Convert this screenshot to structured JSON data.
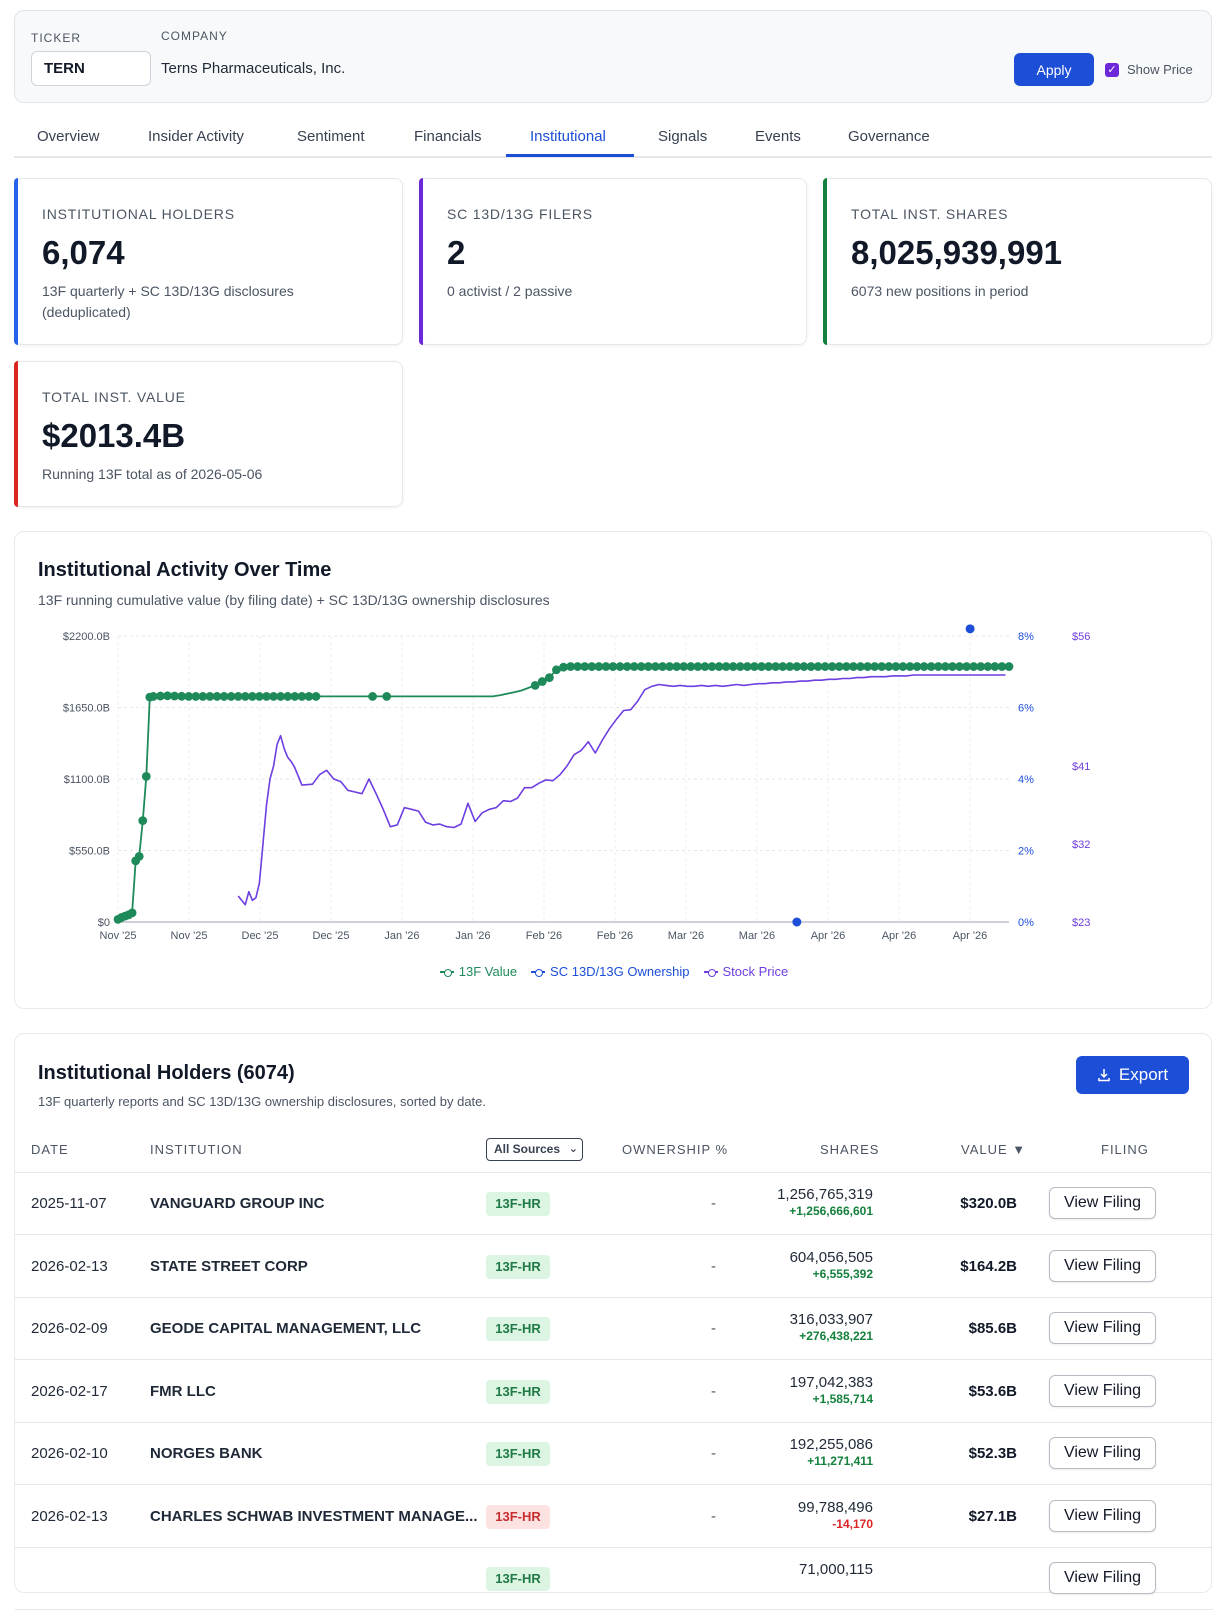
{
  "filters": {
    "ticker_label": "TICKER",
    "ticker_value": "TERN",
    "company_label": "COMPANY",
    "company_name": "Terns Pharmaceuticals, Inc.",
    "apply_label": "Apply",
    "show_price_label": "Show Price",
    "show_price_checked": true
  },
  "tabs": [
    {
      "label": "Overview"
    },
    {
      "label": "Insider Activity"
    },
    {
      "label": "Sentiment"
    },
    {
      "label": "Financials"
    },
    {
      "label": "Institutional",
      "active": true
    },
    {
      "label": "Signals"
    },
    {
      "label": "Events"
    },
    {
      "label": "Governance"
    }
  ],
  "kpis": [
    {
      "label": "INSTITUTIONAL HOLDERS",
      "value": "6,074",
      "sub": "13F quarterly + SC 13D/13G disclosures (deduplicated)",
      "accent": "#2563eb"
    },
    {
      "label": "SC 13D/13G FILERS",
      "value": "2",
      "sub": "0 activist / 2 passive",
      "accent": "#6d28d9"
    },
    {
      "label": "TOTAL INST. SHARES",
      "value": "8,025,939,991",
      "sub": "6073 new positions in period",
      "accent": "#15803d"
    },
    {
      "label": "TOTAL INST. VALUE",
      "value": "$2013.4B",
      "sub": "Running 13F total as of 2026-05-06",
      "accent": "#dc2626"
    }
  ],
  "chart": {
    "title": "Institutional Activity Over Time",
    "subtitle": "13F running cumulative value (by filing date) + SC 13D/13G ownership disclosures",
    "legend": [
      "13F Value",
      "SC 13D/13G Ownership",
      "Stock Price"
    ],
    "colors": {
      "value": "#1e8a5a",
      "ownership": "#1d4ed8",
      "price": "#6d3ee0"
    }
  },
  "chart_data": {
    "type": "line",
    "x_tick_labels": [
      "Nov '25",
      "Nov '25",
      "Dec '25",
      "Dec '25",
      "Jan '26",
      "Jan '26",
      "Feb '26",
      "Feb '26",
      "Mar '26",
      "Mar '26",
      "Apr '26",
      "Apr '26",
      "Apr '26"
    ],
    "y_left": {
      "ticks": [
        "$0",
        "$550.0B",
        "$1100.0B",
        "$1650.0B",
        "$2200.0B"
      ],
      "range": [
        0,
        2200
      ],
      "unit": "$B"
    },
    "y_right_ownership": {
      "ticks": [
        "0%",
        "2%",
        "4%",
        "6%",
        "8%"
      ],
      "range": [
        0,
        8
      ],
      "unit": "%"
    },
    "y_right_price": {
      "ticks": [
        "$23",
        "$32",
        "$41",
        "$56"
      ],
      "range": [
        23,
        56
      ],
      "unit": "$"
    },
    "grid": true,
    "series": [
      {
        "name": "13F Value",
        "axis": "left",
        "x_day": [
          0,
          1,
          2,
          3,
          4,
          5,
          6,
          7,
          8,
          9,
          10,
          12,
          14,
          16,
          18,
          20,
          22,
          24,
          26,
          28,
          30,
          32,
          34,
          36,
          38,
          40,
          42,
          44,
          46,
          48,
          50,
          52,
          54,
          56,
          58,
          60,
          62,
          64,
          66,
          68,
          70,
          72,
          74,
          76,
          78,
          80,
          82,
          84,
          86,
          90,
          96,
          100,
          104,
          106,
          108,
          110,
          112,
          114,
          116,
          118,
          120,
          122,
          124,
          126,
          128,
          130,
          132,
          134,
          136,
          138,
          140,
          142,
          144,
          146,
          148,
          150,
          152,
          154,
          156,
          158,
          160,
          162,
          164,
          166,
          168,
          170,
          172,
          174,
          176,
          178,
          180,
          182,
          184,
          186,
          188,
          190,
          192,
          194,
          196,
          198,
          200,
          202,
          204,
          206,
          208,
          210,
          212,
          214,
          216,
          218,
          220,
          222,
          224,
          226,
          228,
          230,
          232,
          234,
          236,
          238,
          240,
          242,
          244,
          246,
          248,
          250,
          252
        ],
        "values": [
          20,
          35,
          45,
          55,
          70,
          470,
          505,
          780,
          1120,
          1730,
          1735,
          1738,
          1740,
          1738,
          1736,
          1735,
          1735,
          1735,
          1735,
          1735,
          1735,
          1735,
          1735,
          1735,
          1735,
          1735,
          1735,
          1735,
          1735,
          1735,
          1735,
          1735,
          1735,
          1735,
          1735,
          1735,
          1735,
          1735,
          1735,
          1735,
          1735,
          1735,
          1735,
          1735,
          1735,
          1735,
          1735,
          1735,
          1735,
          1735,
          1735,
          1735,
          1735,
          1735,
          1745,
          1755,
          1768,
          1780,
          1800,
          1820,
          1850,
          1880,
          1940,
          1960,
          1965,
          1965,
          1965,
          1965,
          1965,
          1965,
          1965,
          1965,
          1965,
          1965,
          1965,
          1965,
          1965,
          1965,
          1965,
          1965,
          1965,
          1965,
          1965,
          1965,
          1965,
          1965,
          1965,
          1965,
          1965,
          1965,
          1965,
          1965,
          1965,
          1965,
          1965,
          1965,
          1965,
          1965,
          1965,
          1965,
          1965,
          1965,
          1965,
          1965,
          1965,
          1965,
          1965,
          1965,
          1965,
          1965,
          1965,
          1965,
          1965,
          1965,
          1965,
          1965,
          1965,
          1965,
          1965,
          1965,
          1965,
          1965,
          1965,
          1965,
          1965,
          1965,
          1965
        ]
      },
      {
        "name": "SC 13D/13G Ownership",
        "axis": "right_ownership",
        "x_day": [
          192,
          241
        ],
        "values": [
          0.0,
          8.2
        ]
      },
      {
        "name": "Stock Price",
        "axis": "right_price",
        "x_day": [
          34,
          36,
          37,
          38,
          39,
          40,
          42,
          43,
          44,
          45,
          46,
          47,
          48,
          49,
          50,
          52,
          55,
          57,
          59,
          61,
          63,
          65,
          67,
          69,
          71,
          73,
          75,
          77,
          79,
          81,
          83,
          85,
          87,
          89,
          91,
          93,
          95,
          97,
          99,
          101,
          103,
          105,
          107,
          109,
          111,
          113,
          115,
          117,
          119,
          121,
          123,
          125,
          127,
          129,
          131,
          133,
          135,
          137,
          139,
          141,
          143,
          145,
          147,
          149,
          151,
          153,
          155,
          157,
          159,
          161,
          163,
          165,
          167,
          169,
          171,
          173,
          175,
          177,
          179,
          181,
          183,
          185,
          187,
          189,
          191,
          193,
          195,
          197,
          199,
          201,
          203,
          205,
          207,
          209,
          211,
          213,
          215,
          217,
          219,
          221,
          223,
          225,
          227,
          229,
          231,
          233,
          235,
          237,
          239,
          241,
          243,
          245,
          247,
          249,
          251
        ],
        "values": [
          26.0,
          25.0,
          26.5,
          25.5,
          25.8,
          27.5,
          36.5,
          39.5,
          41.0,
          43.5,
          44.5,
          43.0,
          42.0,
          41.5,
          40.8,
          38.8,
          38.9,
          40.0,
          40.5,
          39.5,
          39.2,
          38.2,
          38.0,
          37.8,
          39.5,
          37.8,
          36.0,
          34.0,
          34.2,
          36.2,
          36.0,
          35.8,
          34.5,
          34.2,
          34.3,
          34.0,
          33.9,
          34.3,
          36.7,
          34.6,
          35.6,
          36.0,
          36.2,
          37.0,
          36.9,
          37.3,
          38.5,
          38.5,
          39.0,
          39.4,
          39.3,
          40.0,
          41.0,
          42.3,
          42.8,
          43.8,
          42.5,
          44.0,
          45.3,
          46.4,
          47.4,
          47.5,
          48.5,
          49.8,
          50.2,
          50.4,
          50.3,
          50.2,
          50.3,
          50.2,
          50.2,
          50.3,
          50.2,
          50.3,
          50.2,
          50.3,
          50.4,
          50.3,
          50.4,
          50.5,
          50.5,
          50.6,
          50.6,
          50.7,
          50.7,
          50.8,
          50.8,
          50.9,
          50.9,
          51.0,
          51.0,
          51.1,
          51.1,
          51.2,
          51.2,
          51.3,
          51.3,
          51.3,
          51.4,
          51.4,
          51.4,
          51.5,
          51.5,
          51.5,
          51.5,
          51.5,
          51.5,
          51.5,
          51.5,
          51.5,
          51.5,
          51.5,
          51.5,
          51.5,
          51.5
        ]
      }
    ]
  },
  "holders": {
    "title": "Institutional Holders (6074)",
    "subtitle": "13F quarterly reports and SC 13D/13G ownership disclosures, sorted by date.",
    "export_label": "Export",
    "columns": {
      "date": "DATE",
      "institution": "INSTITUTION",
      "source_filter": "All Sources",
      "ownership": "OWNERSHIP %",
      "shares": "SHARES",
      "value": "VALUE ▼",
      "filing": "FILING"
    },
    "rows": [
      {
        "date": "2025-11-07",
        "institution": "VANGUARD GROUP INC",
        "source": "13F-HR",
        "badge": "green",
        "ownership": "-",
        "shares": "1,256,765,319",
        "delta": "+1,256,666,601",
        "delta_dir": "up",
        "value": "$320.0B",
        "action": "View Filing"
      },
      {
        "date": "2026-02-13",
        "institution": "STATE STREET CORP",
        "source": "13F-HR",
        "badge": "green",
        "ownership": "-",
        "shares": "604,056,505",
        "delta": "+6,555,392",
        "delta_dir": "up",
        "value": "$164.2B",
        "action": "View Filing"
      },
      {
        "date": "2026-02-09",
        "institution": "GEODE CAPITAL MANAGEMENT, LLC",
        "source": "13F-HR",
        "badge": "green",
        "ownership": "-",
        "shares": "316,033,907",
        "delta": "+276,438,221",
        "delta_dir": "up",
        "value": "$85.6B",
        "action": "View Filing"
      },
      {
        "date": "2026-02-17",
        "institution": "FMR LLC",
        "source": "13F-HR",
        "badge": "green",
        "ownership": "-",
        "shares": "197,042,383",
        "delta": "+1,585,714",
        "delta_dir": "up",
        "value": "$53.6B",
        "action": "View Filing"
      },
      {
        "date": "2026-02-10",
        "institution": "NORGES BANK",
        "source": "13F-HR",
        "badge": "green",
        "ownership": "-",
        "shares": "192,255,086",
        "delta": "+11,271,411",
        "delta_dir": "up",
        "value": "$52.3B",
        "action": "View Filing"
      },
      {
        "date": "2026-02-13",
        "institution": "CHARLES SCHWAB INVESTMENT MANAGE...",
        "source": "13F-HR",
        "badge": "red",
        "ownership": "-",
        "shares": "99,788,496",
        "delta": "-14,170",
        "delta_dir": "down",
        "value": "$27.1B",
        "action": "View Filing"
      },
      {
        "date": "",
        "institution": "",
        "source": "13F-HR",
        "badge": "green",
        "ownership": "",
        "shares": "71,000,115",
        "delta": "",
        "delta_dir": "up",
        "value": "",
        "action": "View Filing"
      }
    ]
  }
}
